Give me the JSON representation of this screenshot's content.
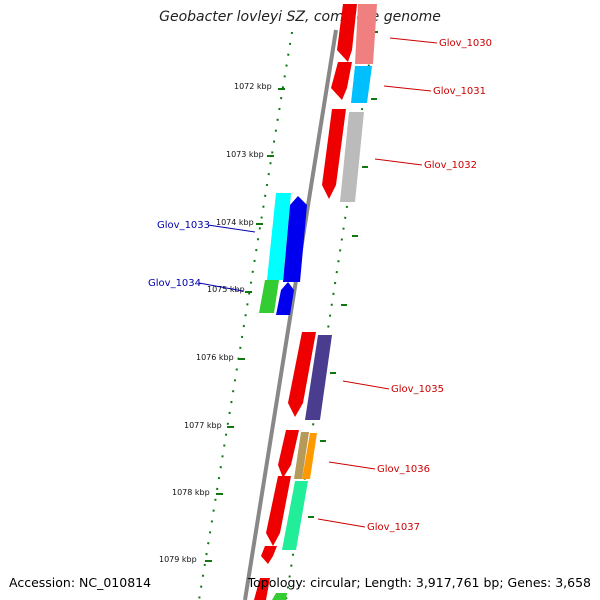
{
  "title": "Geobacter lovleyi SZ, complete genome",
  "footer": {
    "accession": "Accession: NC_010814",
    "summary": "Topology: circular; Length: 3,917,761 bp; Genes: 3,658"
  },
  "ticks": [
    "1072 kbp",
    "1073 kbp",
    "1074 kbp",
    "1075 kbp",
    "1076 kbp",
    "1077 kbp",
    "1078 kbp",
    "1079 kbp"
  ],
  "gene_labels": [
    {
      "text": "Glov_1030",
      "color": "#cc0000"
    },
    {
      "text": "Glov_1031",
      "color": "#cc0000"
    },
    {
      "text": "Glov_1032",
      "color": "#cc0000"
    },
    {
      "text": "Glov_1033",
      "color": "#0000aa"
    },
    {
      "text": "Glov_1034",
      "color": "#0000aa"
    },
    {
      "text": "Glov_1035",
      "color": "#cc0000"
    },
    {
      "text": "Glov_1036",
      "color": "#cc0000"
    },
    {
      "text": "Glov_1037",
      "color": "#cc0000"
    }
  ],
  "colors": {
    "cds": "#ee0000",
    "cds_pale": "#f08080",
    "backbone": "#888888",
    "tick": "#117711",
    "cyan": "#00bfff",
    "aqua": "#00ffff",
    "blue": "#0000ee",
    "gray": "#bbbbbb",
    "purple": "#4a3d8f",
    "tan": "#b59a5a",
    "orange": "#ff9900",
    "green": "#33cc33",
    "mint": "#22ee99"
  }
}
